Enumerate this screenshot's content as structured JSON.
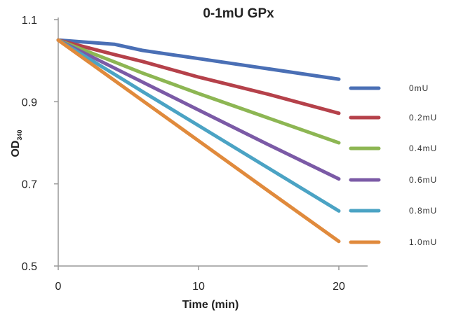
{
  "chart_data": {
    "type": "line",
    "title": "0-1mU GPx",
    "xlabel": "Time (min)",
    "ylabel_main": "OD",
    "ylabel_sub": "340",
    "xlim": [
      0,
      22
    ],
    "ylim": [
      0.5,
      1.1
    ],
    "xticks": [
      0,
      10,
      20
    ],
    "yticks": [
      0.5,
      0.7,
      0.9,
      1.1
    ],
    "xtick_labels": [
      "0",
      "10",
      "20"
    ],
    "ytick_labels": [
      "0.5",
      "0.7",
      "0.9",
      "1.1"
    ],
    "grid": false,
    "legend_placement": "right",
    "x": [
      0,
      4,
      6,
      10,
      15,
      20
    ],
    "series": [
      {
        "name": "0mU",
        "color": "#4a6fb5",
        "values": [
          1.05,
          1.04,
          1.025,
          1.005,
          0.98,
          0.955
        ]
      },
      {
        "name": "0.2mU",
        "color": "#b5414a",
        "values": [
          1.05,
          1.015,
          0.998,
          0.96,
          0.918,
          0.872
        ]
      },
      {
        "name": "0.4mU",
        "color": "#8db653",
        "values": [
          1.05,
          0.997,
          0.97,
          0.92,
          0.86,
          0.8
        ]
      },
      {
        "name": "0.6mU",
        "color": "#7b5aa6",
        "values": [
          1.05,
          0.982,
          0.948,
          0.88,
          0.795,
          0.712
        ]
      },
      {
        "name": "0.8mU",
        "color": "#4ba3c4",
        "values": [
          1.05,
          0.967,
          0.925,
          0.842,
          0.738,
          0.634
        ]
      },
      {
        "name": "1.0mU",
        "color": "#e08a3c",
        "values": [
          1.05,
          0.952,
          0.903,
          0.805,
          0.682,
          0.56
        ]
      }
    ]
  }
}
